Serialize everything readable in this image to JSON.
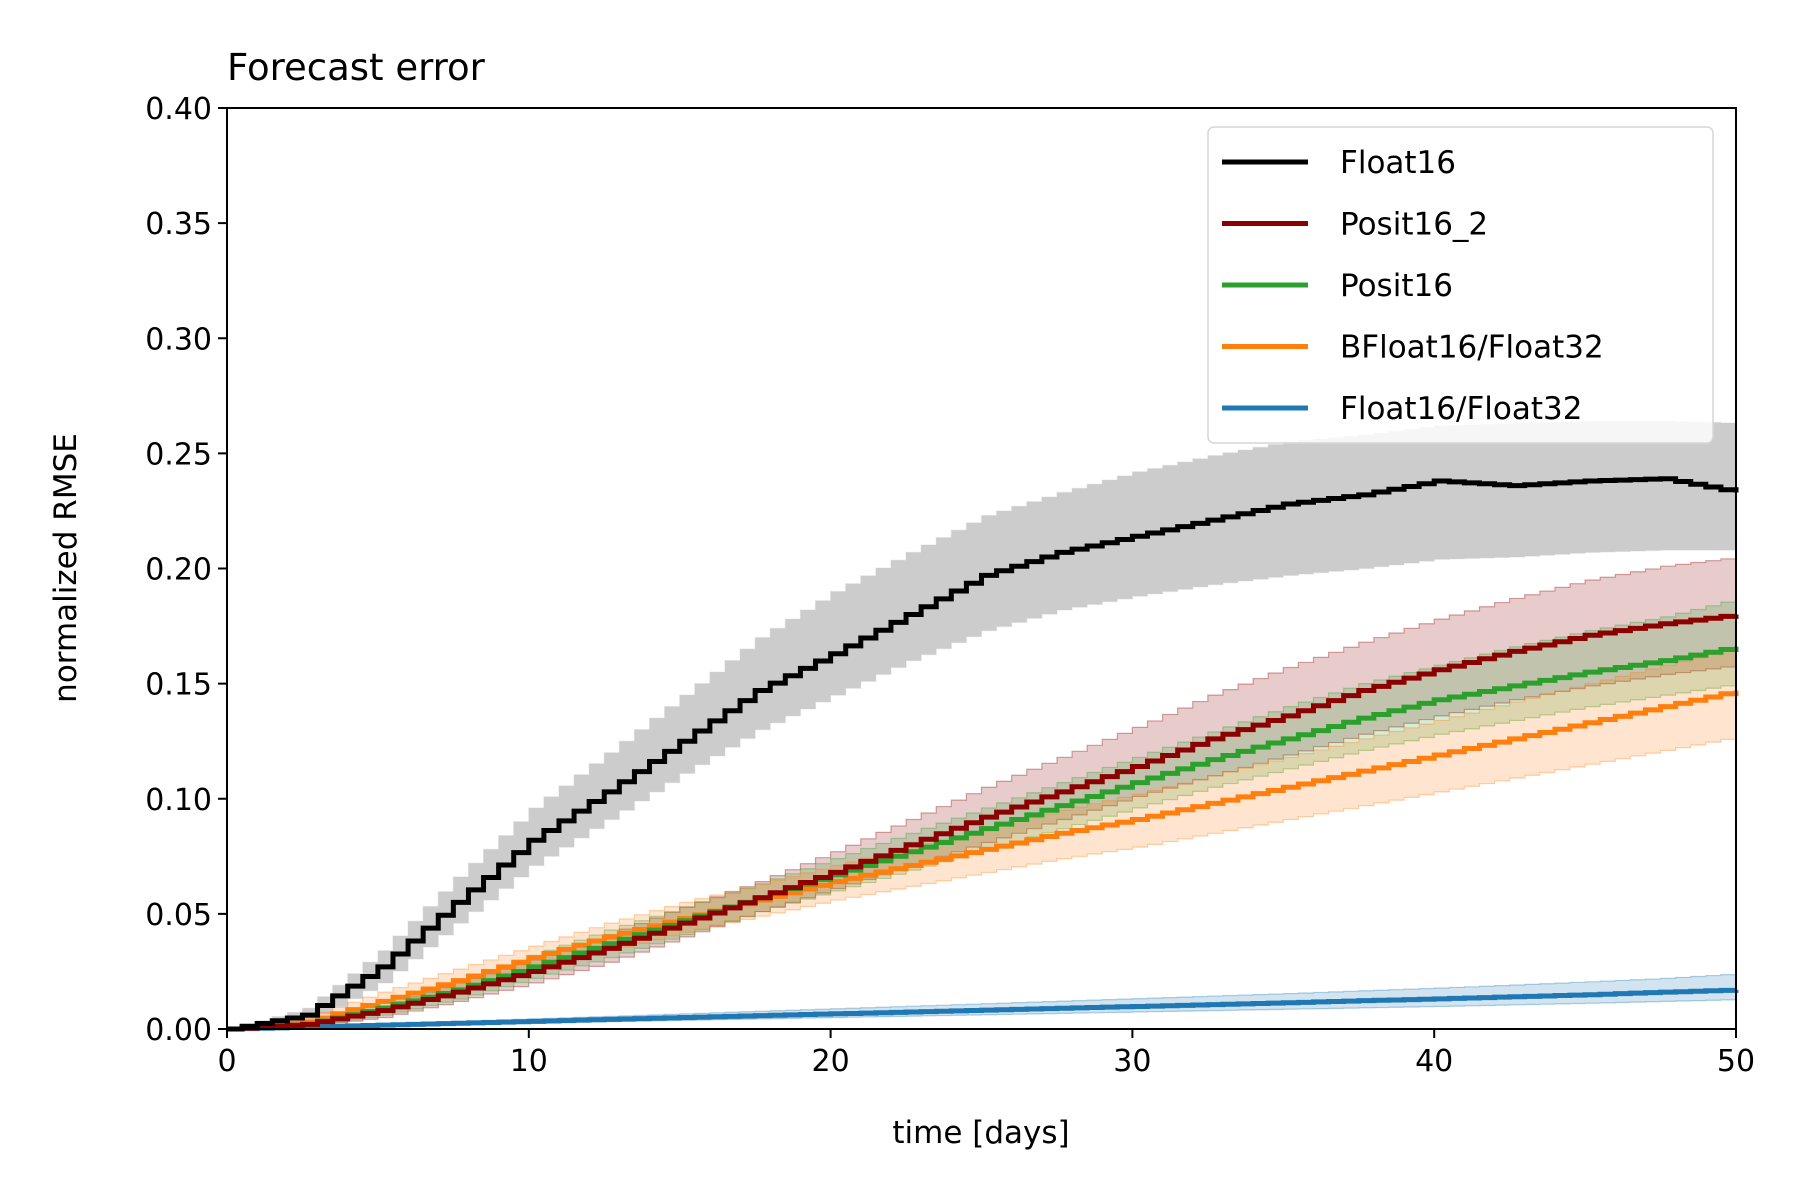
{
  "chart_data": {
    "type": "line",
    "title": "Forecast error",
    "xlabel": "time [days]",
    "ylabel": "normalized RMSE",
    "xlim": [
      0,
      50
    ],
    "ylim": [
      0,
      0.4
    ],
    "xticks": [
      0,
      10,
      20,
      30,
      40,
      50
    ],
    "xtick_labels": [
      "0",
      "10",
      "20",
      "30",
      "40",
      "50"
    ],
    "yticks": [
      0,
      0.05,
      0.1,
      0.15,
      0.2,
      0.25,
      0.3,
      0.35,
      0.4
    ],
    "ytick_labels": [
      "0.00",
      "0.05",
      "0.10",
      "0.15",
      "0.20",
      "0.25",
      "0.30",
      "0.35",
      "0.40"
    ],
    "grid": false,
    "legend_position": "top-right",
    "x": [
      0,
      2.5,
      5,
      7.5,
      10,
      12.5,
      15,
      17.5,
      20,
      22.5,
      25,
      27.5,
      30,
      32.5,
      35,
      37.5,
      40,
      42.5,
      45,
      47.5,
      50
    ],
    "series": [
      {
        "name": "Float16",
        "color": "#000000",
        "band_color": "#c8c8c8",
        "values": [
          0,
          0.006,
          0.027,
          0.055,
          0.082,
          0.103,
          0.125,
          0.147,
          0.163,
          0.18,
          0.197,
          0.207,
          0.214,
          0.221,
          0.228,
          0.232,
          0.238,
          0.236,
          0.238,
          0.239,
          0.233
        ],
        "lower": [
          0,
          0.003,
          0.02,
          0.046,
          0.071,
          0.091,
          0.111,
          0.13,
          0.145,
          0.16,
          0.173,
          0.182,
          0.188,
          0.193,
          0.197,
          0.2,
          0.204,
          0.205,
          0.207,
          0.208,
          0.208
        ],
        "upper": [
          0,
          0.009,
          0.034,
          0.066,
          0.096,
          0.12,
          0.145,
          0.17,
          0.19,
          0.207,
          0.223,
          0.233,
          0.242,
          0.249,
          0.255,
          0.258,
          0.262,
          0.263,
          0.264,
          0.264,
          0.263
        ]
      },
      {
        "name": "Posit16_2",
        "color": "#8b0000",
        "band_color": "#8b0000",
        "values": [
          0,
          0.002,
          0.008,
          0.016,
          0.025,
          0.035,
          0.046,
          0.057,
          0.068,
          0.08,
          0.092,
          0.103,
          0.114,
          0.126,
          0.136,
          0.147,
          0.156,
          0.164,
          0.171,
          0.176,
          0.18
        ],
        "lower": [
          0,
          0.001,
          0.005,
          0.012,
          0.02,
          0.029,
          0.04,
          0.051,
          0.061,
          0.071,
          0.081,
          0.091,
          0.101,
          0.11,
          0.119,
          0.128,
          0.136,
          0.143,
          0.149,
          0.154,
          0.158
        ],
        "upper": [
          0,
          0.003,
          0.01,
          0.02,
          0.03,
          0.041,
          0.053,
          0.064,
          0.077,
          0.091,
          0.105,
          0.118,
          0.131,
          0.145,
          0.157,
          0.168,
          0.178,
          0.187,
          0.195,
          0.201,
          0.205
        ]
      },
      {
        "name": "Posit16",
        "color": "#2ca02c",
        "band_color": "#2ca02c",
        "values": [
          0,
          0.002,
          0.009,
          0.017,
          0.027,
          0.037,
          0.047,
          0.057,
          0.067,
          0.077,
          0.087,
          0.097,
          0.107,
          0.117,
          0.126,
          0.135,
          0.143,
          0.149,
          0.155,
          0.16,
          0.166
        ],
        "lower": [
          0,
          0.001,
          0.006,
          0.013,
          0.022,
          0.031,
          0.041,
          0.051,
          0.06,
          0.069,
          0.078,
          0.087,
          0.096,
          0.105,
          0.113,
          0.121,
          0.128,
          0.134,
          0.14,
          0.145,
          0.15
        ],
        "upper": [
          0,
          0.003,
          0.012,
          0.021,
          0.032,
          0.043,
          0.053,
          0.063,
          0.074,
          0.085,
          0.096,
          0.107,
          0.118,
          0.129,
          0.14,
          0.15,
          0.158,
          0.166,
          0.173,
          0.179,
          0.187
        ]
      },
      {
        "name": "BFloat16/Float32",
        "color": "#ff7f0e",
        "band_color": "#ff7f0e",
        "values": [
          0,
          0.003,
          0.012,
          0.021,
          0.031,
          0.04,
          0.048,
          0.056,
          0.064,
          0.071,
          0.078,
          0.085,
          0.091,
          0.098,
          0.105,
          0.112,
          0.119,
          0.126,
          0.133,
          0.14,
          0.147
        ],
        "lower": [
          0,
          0.002,
          0.009,
          0.017,
          0.026,
          0.034,
          0.042,
          0.049,
          0.056,
          0.062,
          0.068,
          0.074,
          0.079,
          0.085,
          0.091,
          0.097,
          0.103,
          0.109,
          0.115,
          0.121,
          0.127
        ],
        "upper": [
          0,
          0.005,
          0.016,
          0.026,
          0.036,
          0.046,
          0.055,
          0.063,
          0.071,
          0.079,
          0.087,
          0.095,
          0.102,
          0.11,
          0.118,
          0.126,
          0.134,
          0.142,
          0.15,
          0.158,
          0.166
        ]
      },
      {
        "name": "Float16/Float32",
        "color": "#1f77b4",
        "band_color": "#1f77b4",
        "values": [
          0,
          0.0008,
          0.0017,
          0.0025,
          0.0033,
          0.0042,
          0.005,
          0.0058,
          0.0066,
          0.0074,
          0.0082,
          0.009,
          0.0098,
          0.0106,
          0.0114,
          0.0123,
          0.0131,
          0.014,
          0.0149,
          0.016,
          0.017
        ],
        "lower": [
          0,
          0.0006,
          0.0013,
          0.0019,
          0.0026,
          0.0032,
          0.0038,
          0.0044,
          0.005,
          0.0056,
          0.0062,
          0.0068,
          0.0074,
          0.008,
          0.0086,
          0.0092,
          0.0098,
          0.0105,
          0.0112,
          0.012,
          0.0128
        ],
        "upper": [
          0,
          0.0011,
          0.0022,
          0.0033,
          0.0044,
          0.0055,
          0.0066,
          0.0077,
          0.0088,
          0.0099,
          0.011,
          0.0121,
          0.0132,
          0.0143,
          0.0154,
          0.0166,
          0.0178,
          0.0191,
          0.0205,
          0.022,
          0.024
        ]
      }
    ],
    "legend": [
      "Float16",
      "Posit16_2",
      "Posit16",
      "BFloat16/Float32",
      "Float16/Float32"
    ]
  }
}
